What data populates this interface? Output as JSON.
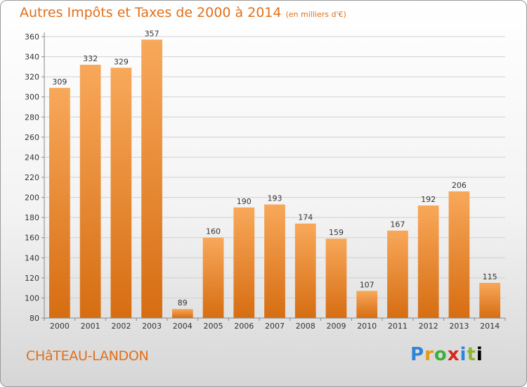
{
  "chart_data": {
    "type": "bar",
    "title": "Autres Impôts et Taxes de 2000 à 2014",
    "subtitle": "(en milliers d'€)",
    "categories": [
      "2000",
      "2001",
      "2002",
      "2003",
      "2004",
      "2005",
      "2006",
      "2007",
      "2008",
      "2009",
      "2010",
      "2011",
      "2012",
      "2013",
      "2014"
    ],
    "values": [
      309,
      332,
      329,
      357,
      89,
      160,
      190,
      193,
      174,
      159,
      107,
      167,
      192,
      206,
      115
    ],
    "ylim": [
      80,
      360
    ],
    "yticks": [
      80,
      100,
      120,
      140,
      160,
      180,
      200,
      220,
      240,
      260,
      280,
      300,
      320,
      340,
      360
    ],
    "grid": true,
    "colors": {
      "bar_light": "#f8a85a",
      "bar_dark": "#d66d12",
      "label": "#e0701a"
    }
  },
  "commune": "CHâTEAU-LANDON",
  "logo": {
    "letters": [
      "P",
      "r",
      "o",
      "x",
      "i",
      "t",
      "i"
    ]
  }
}
